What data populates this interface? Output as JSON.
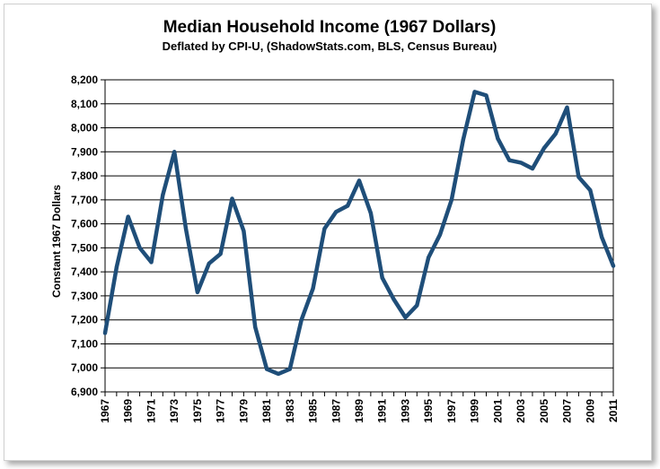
{
  "chart_data": {
    "type": "line",
    "title": "Median Household Income (1967 Dollars)",
    "subtitle": "Deflated by CPI-U, (ShadowStats.com, BLS, Census Bureau)",
    "xlabel": "",
    "ylabel": "Constant 1967 Dollars",
    "ylim": [
      6900,
      8200
    ],
    "y_ticks": [
      6900,
      7000,
      7100,
      7200,
      7300,
      7400,
      7500,
      7600,
      7700,
      7800,
      7900,
      8000,
      8100,
      8200
    ],
    "y_tick_labels": [
      "6,900",
      "7,000",
      "7,100",
      "7,200",
      "7,300",
      "7,400",
      "7,500",
      "7,600",
      "7,700",
      "7,800",
      "7,900",
      "8,000",
      "8,100",
      "8,200"
    ],
    "xlim": [
      1967,
      2011
    ],
    "x_tick_labels": [
      "1967",
      "1969",
      "1971",
      "1973",
      "1975",
      "1977",
      "1979",
      "1981",
      "1983",
      "1985",
      "1987",
      "1989",
      "1991",
      "1993",
      "1995",
      "1997",
      "1999",
      "2001",
      "2003",
      "2005",
      "2007",
      "2009",
      "2011"
    ],
    "grid": true,
    "line_color": "#1f4e79",
    "series": [
      {
        "x": [
          1967,
          1968,
          1969,
          1970,
          1971,
          1972,
          1973,
          1974,
          1975,
          1976,
          1977,
          1978,
          1979,
          1980,
          1981,
          1982,
          1983,
          1984,
          1985,
          1986,
          1987,
          1988,
          1989,
          1990,
          1991,
          1992,
          1993,
          1994,
          1995,
          1996,
          1997,
          1998,
          1999,
          2000,
          2001,
          2002,
          2003,
          2004,
          2005,
          2006,
          2007,
          2008,
          2009,
          2010,
          2011
        ],
        "values": [
          7145,
          7420,
          7630,
          7500,
          7440,
          7720,
          7900,
          7580,
          7315,
          7435,
          7475,
          7705,
          7570,
          7170,
          6995,
          6975,
          6995,
          7200,
          7330,
          7580,
          7650,
          7675,
          7780,
          7645,
          7375,
          7285,
          7210,
          7260,
          7460,
          7555,
          7700,
          7950,
          8150,
          8135,
          7955,
          7865,
          7855,
          7830,
          7915,
          7975,
          8085,
          7795,
          7740,
          7545,
          7425
        ]
      }
    ]
  }
}
